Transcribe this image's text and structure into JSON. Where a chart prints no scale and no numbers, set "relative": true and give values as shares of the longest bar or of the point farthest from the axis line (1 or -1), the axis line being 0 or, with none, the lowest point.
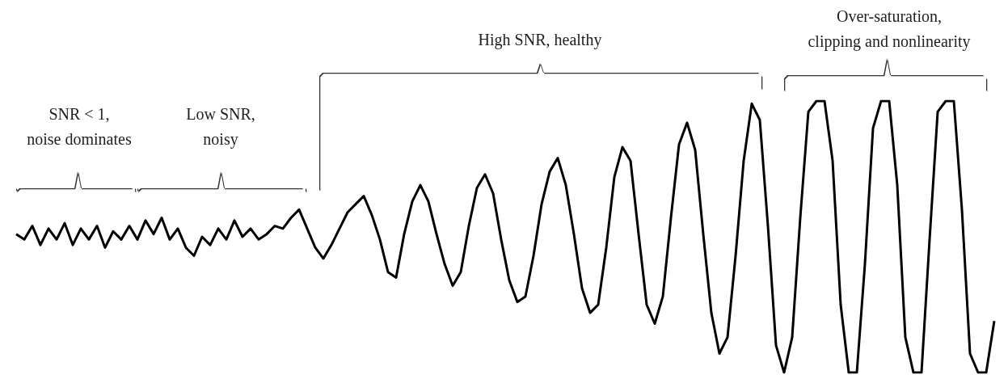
{
  "chart_data": {
    "type": "line",
    "relative": true,
    "color": "#000000",
    "marker": "none",
    "line_style": "solid",
    "grid": false,
    "annotations": [
      "SNR < 1,\nnoise dominates",
      "Low SNR,\nnoisy",
      "High SNR, healthy",
      "Over-saturation,\nclipping and nonlinearity"
    ],
    "categories": [
      null,
      null,
      null,
      null,
      null,
      null,
      null,
      null,
      null,
      null,
      null,
      null,
      null,
      null,
      null,
      null,
      null,
      null,
      null,
      null,
      null,
      null,
      null,
      null,
      null,
      null,
      null,
      null,
      null,
      null,
      null,
      null,
      null,
      null,
      null,
      null,
      null,
      null,
      null,
      null,
      null,
      null,
      null,
      null,
      null,
      null,
      null,
      null,
      null,
      null,
      null,
      null,
      null,
      null,
      null,
      null,
      null,
      null,
      null,
      null,
      null,
      null,
      null,
      null,
      null,
      null,
      null,
      null,
      null,
      null,
      null,
      null,
      null,
      null,
      null,
      null,
      null,
      null,
      null,
      null,
      null,
      null,
      null,
      null,
      null,
      null,
      null,
      null,
      null,
      null,
      null,
      null,
      null,
      null,
      null,
      null,
      null,
      null,
      null,
      null,
      null,
      null,
      null,
      null,
      null,
      null,
      null,
      null,
      null,
      null,
      null,
      null,
      null,
      null,
      null,
      null,
      null,
      null,
      null,
      null,
      null,
      null
    ],
    "values": [
      0.51,
      0.49,
      0.54,
      0.47,
      0.53,
      0.49,
      0.55,
      0.47,
      0.53,
      0.49,
      0.54,
      0.46,
      0.52,
      0.49,
      0.54,
      0.49,
      0.56,
      0.51,
      0.57,
      0.49,
      0.53,
      0.46,
      0.43,
      0.5,
      0.47,
      0.53,
      0.49,
      0.56,
      0.5,
      0.53,
      0.49,
      0.51,
      0.54,
      0.53,
      0.57,
      0.6,
      0.53,
      0.46,
      0.42,
      0.47,
      0.53,
      0.59,
      0.62,
      0.65,
      0.58,
      0.49,
      0.37,
      0.35,
      0.51,
      0.63,
      0.69,
      0.63,
      0.51,
      0.4,
      0.32,
      0.37,
      0.54,
      0.68,
      0.73,
      0.66,
      0.49,
      0.34,
      0.26,
      0.28,
      0.43,
      0.62,
      0.74,
      0.79,
      0.69,
      0.51,
      0.31,
      0.22,
      0.25,
      0.46,
      0.72,
      0.83,
      0.78,
      0.51,
      0.25,
      0.18,
      0.28,
      0.57,
      0.84,
      0.92,
      0.82,
      0.51,
      0.22,
      0.07,
      0.13,
      0.43,
      0.78,
      0.99,
      0.93,
      0.54,
      0.1,
      0,
      0.13,
      0.57,
      0.96,
      1,
      1,
      0.78,
      0.25,
      0,
      0,
      0.4,
      0.9,
      1,
      1,
      0.69,
      0.13,
      0,
      0,
      0.49,
      0.96,
      1,
      1,
      0.6,
      0.07,
      0,
      0,
      0.19
    ]
  }
}
